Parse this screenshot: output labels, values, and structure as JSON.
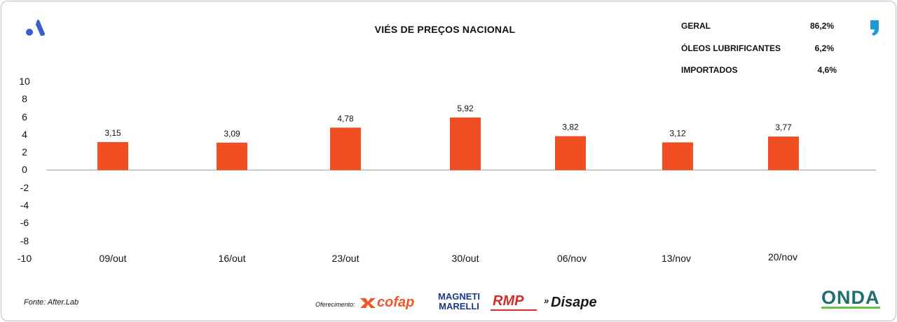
{
  "chart_data": {
    "type": "bar",
    "title": "VIÉS DE PREÇOS NACIONAL",
    "categories": [
      "09/out",
      "16/out",
      "23/out",
      "30/out",
      "06/nov",
      "13/nov",
      "20/nov"
    ],
    "values": [
      3.15,
      3.09,
      4.78,
      5.92,
      3.82,
      3.12,
      3.77
    ],
    "value_labels": [
      "3,15",
      "3,09",
      "4,78",
      "5,92",
      "3,82",
      "3,12",
      "3,77"
    ],
    "ylim": [
      -10,
      10
    ],
    "yticks": [
      "10",
      "8",
      "6",
      "4",
      "2",
      "0",
      "-2",
      "-4",
      "-6",
      "-8",
      "-10"
    ],
    "bar_color": "#f04e23",
    "grid": false,
    "legend": "none"
  },
  "stats": [
    {
      "label": "GERAL",
      "value": "86,2%"
    },
    {
      "label": "ÓLEOS LUBRIFICANTES",
      "value": "6,2%"
    },
    {
      "label": "IMPORTADOS",
      "value": "4,6%"
    }
  ],
  "footer": {
    "source": "Fonte: After.Lab",
    "sponsor_label": "Oferecimento:"
  },
  "logos": {
    "cofap": "cofap",
    "magneti": "MAGNETI MARELLI",
    "rmp": "RMP",
    "disape": "Disape",
    "onda": "ONDA"
  },
  "colors": {
    "accent_blue": "#3a5fcd",
    "accent_cyan": "#1e9bd7",
    "bar": "#f04e23"
  }
}
